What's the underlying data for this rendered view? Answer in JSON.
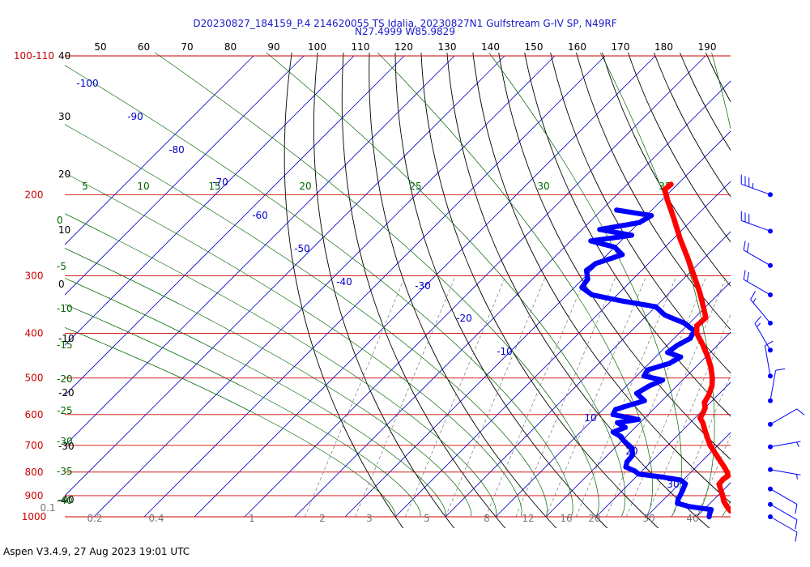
{
  "header": {
    "title_line1": "D20230827_184159_P.4 214620055 TS Idalia, 20230827N1 Gulfstream G-IV SP, N49RF",
    "title_line2": "N27.4999 W85.9829"
  },
  "footer": {
    "text": "Aspen V3.4.9, 27 Aug 2023  19:01 UTC"
  },
  "colors": {
    "temperature": "#ff0000",
    "dewpoint": "#0000ff",
    "isobar": "#cc0000",
    "isotherm": "#0000cc",
    "dry_adiabat": "#000000",
    "moist_adiabat": "#006600",
    "mixing_ratio": "#777777",
    "wind_barb": "#0000ff"
  },
  "chart_data": {
    "type": "skew-t",
    "title": "D20230827_184159_P.4 214620055 TS Idalia, 20230827N1 Gulfstream G-IV SP, N49RF",
    "subtitle": "N27.4999 W85.9829",
    "pressure_axis": {
      "scale": "log",
      "range_hPa": [
        1000,
        100
      ],
      "labels": [
        "100-110",
        "200",
        "300",
        "400",
        "500",
        "600",
        "700",
        "800",
        "900",
        "1000"
      ]
    },
    "isobars_hPa": [
      100,
      200,
      300,
      400,
      500,
      600,
      700,
      800,
      900,
      1000
    ],
    "top_axis": {
      "labels": [
        "50",
        "60",
        "70",
        "80",
        "90",
        "100",
        "110",
        "120",
        "130",
        "140",
        "150",
        "160",
        "170",
        "180",
        "190"
      ]
    },
    "left_black_labels": [
      "40",
      "30",
      "20",
      "10",
      "0",
      "-10",
      "-20",
      "-30",
      "-40"
    ],
    "left_green_labels": [
      "0",
      "-5",
      "-10",
      "-15",
      "-20",
      "-25",
      "-30",
      "-35",
      "-40"
    ],
    "moist_adiabat_top_labels": [
      "5",
      "10",
      "15",
      "20",
      "25",
      "30",
      "35"
    ],
    "isotherm_labels": [
      {
        "text": "-100"
      },
      {
        "text": "-90"
      },
      {
        "text": "-80"
      },
      {
        "text": "-70"
      },
      {
        "text": "-60"
      },
      {
        "text": "-50"
      },
      {
        "text": "-40"
      },
      {
        "text": "-30"
      },
      {
        "text": "-20"
      },
      {
        "text": "-10"
      },
      {
        "text": "10"
      },
      {
        "text": "20"
      },
      {
        "text": "30"
      }
    ],
    "mixing_ratio_labels": [
      "0.1",
      "0.2",
      "0.4",
      "1",
      "2",
      "3",
      "5",
      "8",
      "12",
      "16",
      "20",
      "30",
      "40"
    ],
    "temperature_profile": [
      {
        "p": 1000,
        "t": 29.5
      },
      {
        "p": 985,
        "t": 27.0
      },
      {
        "p": 970,
        "t": 25.5
      },
      {
        "p": 950,
        "t": 24.0
      },
      {
        "p": 925,
        "t": 22.3
      },
      {
        "p": 900,
        "t": 21.0
      },
      {
        "p": 875,
        "t": 19.5
      },
      {
        "p": 850,
        "t": 18.0
      },
      {
        "p": 830,
        "t": 17.8
      },
      {
        "p": 815,
        "t": 18.1
      },
      {
        "p": 800,
        "t": 17.2
      },
      {
        "p": 775,
        "t": 15.2
      },
      {
        "p": 750,
        "t": 13.0
      },
      {
        "p": 725,
        "t": 10.8
      },
      {
        "p": 700,
        "t": 8.5
      },
      {
        "p": 675,
        "t": 6.5
      },
      {
        "p": 650,
        "t": 4.5
      },
      {
        "p": 625,
        "t": 2.5
      },
      {
        "p": 610,
        "t": 1.0
      },
      {
        "p": 595,
        "t": 0.6
      },
      {
        "p": 580,
        "t": 0.0
      },
      {
        "p": 565,
        "t": -1.2
      },
      {
        "p": 545,
        "t": -1.8
      },
      {
        "p": 520,
        "t": -3.0
      },
      {
        "p": 500,
        "t": -4.5
      },
      {
        "p": 475,
        "t": -6.8
      },
      {
        "p": 450,
        "t": -9.6
      },
      {
        "p": 425,
        "t": -12.8
      },
      {
        "p": 400,
        "t": -16.5
      },
      {
        "p": 385,
        "t": -18.0
      },
      {
        "p": 370,
        "t": -17.8
      },
      {
        "p": 350,
        "t": -20.5
      },
      {
        "p": 325,
        "t": -24.2
      },
      {
        "p": 300,
        "t": -28.5
      },
      {
        "p": 275,
        "t": -33.2
      },
      {
        "p": 250,
        "t": -38.5
      },
      {
        "p": 225,
        "t": -44.0
      },
      {
        "p": 205,
        "t": -49.0
      },
      {
        "p": 195,
        "t": -51.5
      },
      {
        "p": 190,
        "t": -51.3
      }
    ],
    "dewpoint_profile": [
      {
        "p": 1000,
        "td": 22.5
      },
      {
        "p": 985,
        "td": 22.0
      },
      {
        "p": 965,
        "td": 21.5
      },
      {
        "p": 950,
        "td": 16.5
      },
      {
        "p": 935,
        "td": 13.5
      },
      {
        "p": 915,
        "td": 12.8
      },
      {
        "p": 895,
        "td": 12.4
      },
      {
        "p": 870,
        "td": 11.8
      },
      {
        "p": 848,
        "td": 11.2
      },
      {
        "p": 832,
        "td": 9.5
      },
      {
        "p": 818,
        "td": 4.5
      },
      {
        "p": 808,
        "td": 0.0
      },
      {
        "p": 795,
        "td": -1.5
      },
      {
        "p": 780,
        "td": -4.0
      },
      {
        "p": 760,
        "td": -4.8
      },
      {
        "p": 735,
        "td": -5.0
      },
      {
        "p": 710,
        "td": -6.5
      },
      {
        "p": 685,
        "td": -9.5
      },
      {
        "p": 670,
        "td": -11.0
      },
      {
        "p": 655,
        "td": -13.5
      },
      {
        "p": 640,
        "td": -12.0
      },
      {
        "p": 625,
        "td": -14.5
      },
      {
        "p": 615,
        "td": -11.0
      },
      {
        "p": 600,
        "td": -17.0
      },
      {
        "p": 585,
        "td": -17.5
      },
      {
        "p": 575,
        "td": -16.0
      },
      {
        "p": 560,
        "td": -13.5
      },
      {
        "p": 540,
        "td": -16.5
      },
      {
        "p": 520,
        "td": -15.5
      },
      {
        "p": 505,
        "td": -14.0
      },
      {
        "p": 495,
        "td": -18.5
      },
      {
        "p": 480,
        "td": -19.0
      },
      {
        "p": 465,
        "td": -16.0
      },
      {
        "p": 450,
        "td": -15.0
      },
      {
        "p": 440,
        "td": -18.5
      },
      {
        "p": 425,
        "td": -18.0
      },
      {
        "p": 410,
        "td": -16.8
      },
      {
        "p": 395,
        "td": -17.5
      },
      {
        "p": 380,
        "td": -21.0
      },
      {
        "p": 365,
        "td": -26.5
      },
      {
        "p": 350,
        "td": -30.0
      },
      {
        "p": 340,
        "td": -38.0
      },
      {
        "p": 330,
        "td": -45.0
      },
      {
        "p": 318,
        "td": -48.5
      },
      {
        "p": 305,
        "td": -49.0
      },
      {
        "p": 292,
        "td": -51.0
      },
      {
        "p": 282,
        "td": -50.5
      },
      {
        "p": 270,
        "td": -47.0
      },
      {
        "p": 260,
        "td": -50.0
      },
      {
        "p": 252,
        "td": -56.0
      },
      {
        "p": 245,
        "td": -49.0
      },
      {
        "p": 238,
        "td": -56.5
      },
      {
        "p": 230,
        "td": -50.0
      },
      {
        "p": 222,
        "td": -49.0
      },
      {
        "p": 216,
        "td": -57.0
      }
    ],
    "wind_barbs": [
      {
        "p": 200,
        "speed_kt": 35,
        "dir_deg": 290
      },
      {
        "p": 240,
        "speed_kt": 30,
        "dir_deg": 290
      },
      {
        "p": 285,
        "speed_kt": 20,
        "dir_deg": 300
      },
      {
        "p": 330,
        "speed_kt": 20,
        "dir_deg": 300
      },
      {
        "p": 380,
        "speed_kt": 15,
        "dir_deg": 320
      },
      {
        "p": 435,
        "speed_kt": 15,
        "dir_deg": 330
      },
      {
        "p": 495,
        "speed_kt": 10,
        "dir_deg": 350
      },
      {
        "p": 560,
        "speed_kt": 10,
        "dir_deg": 10
      },
      {
        "p": 630,
        "speed_kt": 10,
        "dir_deg": 60
      },
      {
        "p": 705,
        "speed_kt": 5,
        "dir_deg": 80
      },
      {
        "p": 790,
        "speed_kt": 5,
        "dir_deg": 100
      },
      {
        "p": 870,
        "speed_kt": 10,
        "dir_deg": 120
      },
      {
        "p": 940,
        "speed_kt": 10,
        "dir_deg": 120
      },
      {
        "p": 1000,
        "speed_kt": 10,
        "dir_deg": 120
      }
    ]
  }
}
